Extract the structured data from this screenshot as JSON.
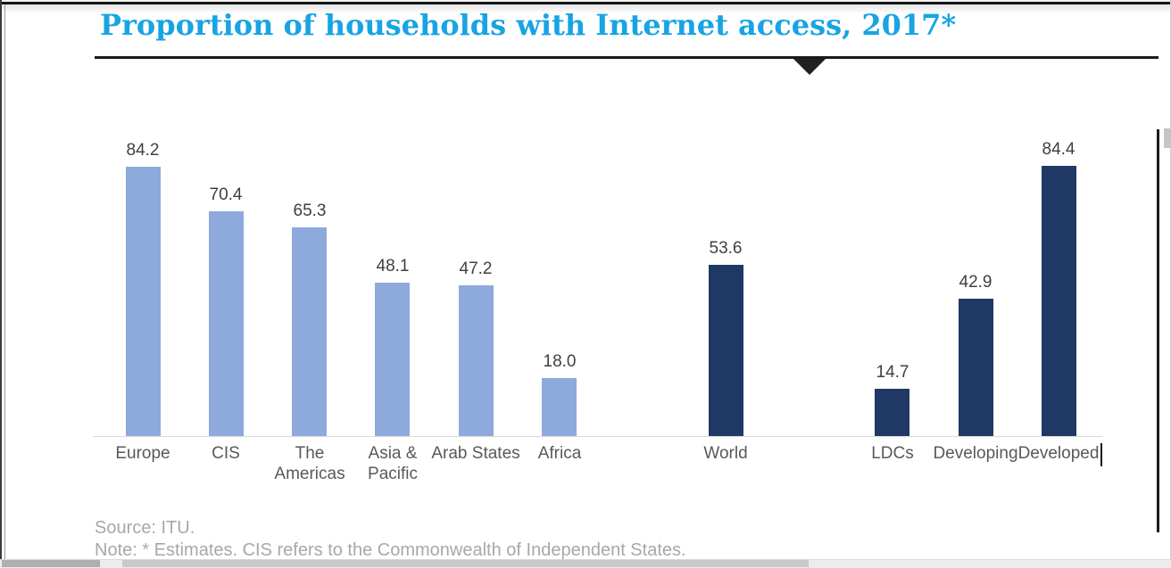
{
  "header": {
    "title": "Proportion of households with Internet access, 2017*"
  },
  "chart_data": {
    "type": "bar",
    "title": "Proportion of households with Internet access, 2017*",
    "categories": [
      "Europe",
      "CIS",
      "The Americas",
      "Asia & Pacific",
      "Arab States",
      "Africa",
      "World",
      "LDCs",
      "Developing",
      "Developed"
    ],
    "values": [
      84.2,
      70.4,
      65.3,
      48.1,
      47.2,
      18.0,
      53.6,
      14.7,
      42.9,
      84.4
    ],
    "bars": [
      {
        "label": "Europe",
        "label_lines": [
          "Europe"
        ],
        "value": 84.2,
        "display": "84.2",
        "group": "region",
        "slot": 0
      },
      {
        "label": "CIS",
        "label_lines": [
          "CIS"
        ],
        "value": 70.4,
        "display": "70.4",
        "group": "region",
        "slot": 1
      },
      {
        "label": "The Americas",
        "label_lines": [
          "The",
          "Americas"
        ],
        "value": 65.3,
        "display": "65.3",
        "group": "region",
        "slot": 2
      },
      {
        "label": "Asia & Pacific",
        "label_lines": [
          "Asia &",
          "Pacific"
        ],
        "value": 48.1,
        "display": "48.1",
        "group": "region",
        "slot": 3
      },
      {
        "label": "Arab States",
        "label_lines": [
          "Arab States"
        ],
        "value": 47.2,
        "display": "47.2",
        "group": "region",
        "slot": 4
      },
      {
        "label": "Africa",
        "label_lines": [
          "Africa"
        ],
        "value": 18.0,
        "display": "18.0",
        "group": "region",
        "slot": 5
      },
      {
        "label": "World",
        "label_lines": [
          "World"
        ],
        "value": 53.6,
        "display": "53.6",
        "group": "aggregate",
        "slot": 7
      },
      {
        "label": "LDCs",
        "label_lines": [
          "LDCs"
        ],
        "value": 14.7,
        "display": "14.7",
        "group": "aggregate",
        "slot": 9
      },
      {
        "label": "Developing",
        "label_lines": [
          "Developing"
        ],
        "value": 42.9,
        "display": "42.9",
        "group": "aggregate",
        "slot": 10
      },
      {
        "label": "Developed",
        "label_lines": [
          "Developed"
        ],
        "value": 84.4,
        "display": "84.4",
        "group": "aggregate",
        "slot": 11
      }
    ],
    "colors": {
      "region": "#8EA9DB",
      "aggregate": "#1F3864",
      "title_accent": "#18A4E3",
      "value_label": "#404040",
      "category_label": "#595959",
      "axis_line": "#D9D9D9"
    },
    "ylim": [
      0,
      100
    ],
    "grid": false,
    "legend": false,
    "data_labels": true,
    "xlabel": "",
    "ylabel": ""
  },
  "footer": {
    "source": "Source: ITU.",
    "note": "Note: * Estimates. CIS refers to the Commonwealth of Independent States."
  }
}
